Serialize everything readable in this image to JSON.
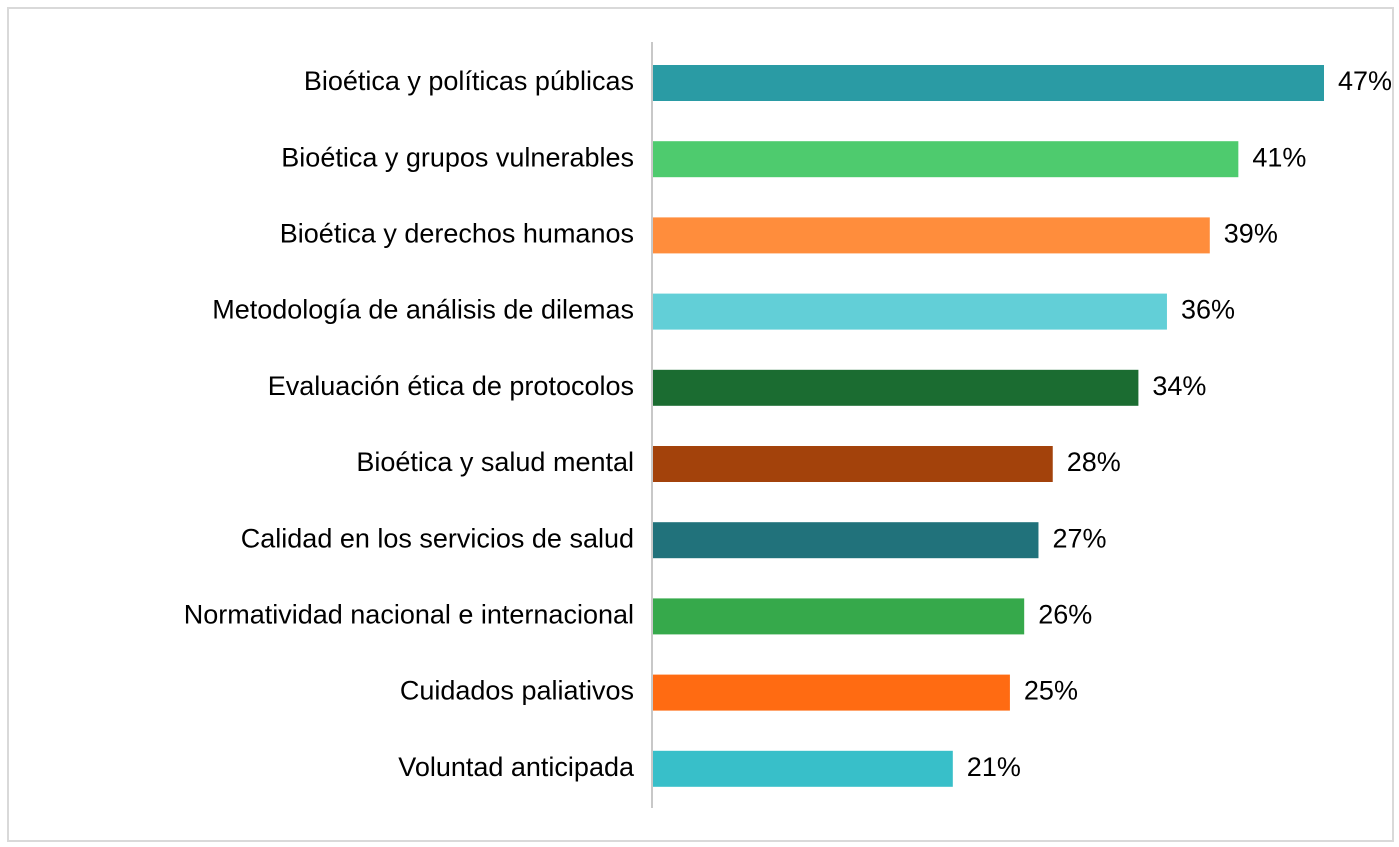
{
  "chart_data": {
    "type": "bar",
    "orientation": "horizontal",
    "categories": [
      "Bioética y políticas públicas",
      "Bioética y grupos vulnerables",
      "Bioética y derechos humanos",
      "Metodología de análisis de dilemas",
      "Evaluación ética de protocolos",
      "Bioética y salud mental",
      "Calidad en los servicios de salud",
      "Normatividad nacional e internacional",
      "Cuidados paliativos",
      "Voluntad anticipada"
    ],
    "values": [
      47,
      41,
      39,
      36,
      34,
      28,
      27,
      26,
      25,
      21
    ],
    "value_labels": [
      "47%",
      "41%",
      "39%",
      "36%",
      "34%",
      "28%",
      "27%",
      "26%",
      "25%",
      "21%"
    ],
    "colors": [
      "#2a9ba4",
      "#4ecb6e",
      "#ff8d3c",
      "#62cfd7",
      "#1b6c31",
      "#a3420b",
      "#21727b",
      "#36a94b",
      "#ff6b12",
      "#38bfc9"
    ]
  }
}
